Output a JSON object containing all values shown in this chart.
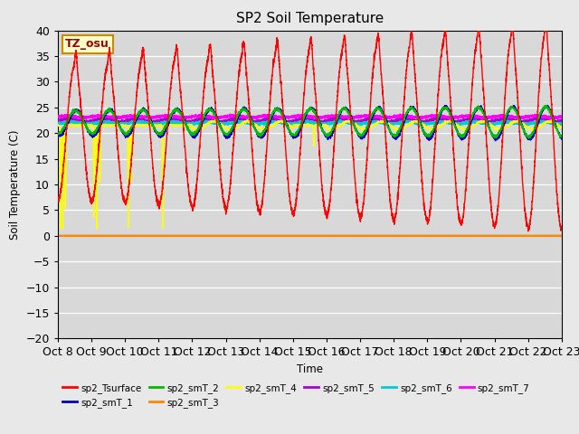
{
  "title": "SP2 Soil Temperature",
  "ylabel": "Soil Temperature (C)",
  "xlabel": "Time",
  "annotation": "TZ_osu",
  "ylim": [
    -20,
    40
  ],
  "background_color": "#e8e8e8",
  "plot_bg_color": "#d8d8d8",
  "xtick_labels": [
    "Oct 8",
    "Oct 9",
    "Oct 10",
    "Oct 11",
    "Oct 12",
    "Oct 13",
    "Oct 14",
    "Oct 15",
    "Oct 16",
    "Oct 17",
    "Oct 18",
    "Oct 19",
    "Oct 20",
    "Oct 21",
    "Oct 22",
    "Oct 23"
  ],
  "legend_entries": [
    {
      "label": "sp2_Tsurface",
      "color": "#ff0000"
    },
    {
      "label": "sp2_smT_1",
      "color": "#0000bb"
    },
    {
      "label": "sp2_smT_2",
      "color": "#00bb00"
    },
    {
      "label": "sp2_smT_3",
      "color": "#ff8800"
    },
    {
      "label": "sp2_smT_4",
      "color": "#ffff00"
    },
    {
      "label": "sp2_smT_5",
      "color": "#aa00cc"
    },
    {
      "label": "sp2_smT_6",
      "color": "#00cccc"
    },
    {
      "label": "sp2_smT_7",
      "color": "#ff00ff"
    }
  ],
  "num_days": 15,
  "pts_per_day": 288,
  "seed": 7
}
